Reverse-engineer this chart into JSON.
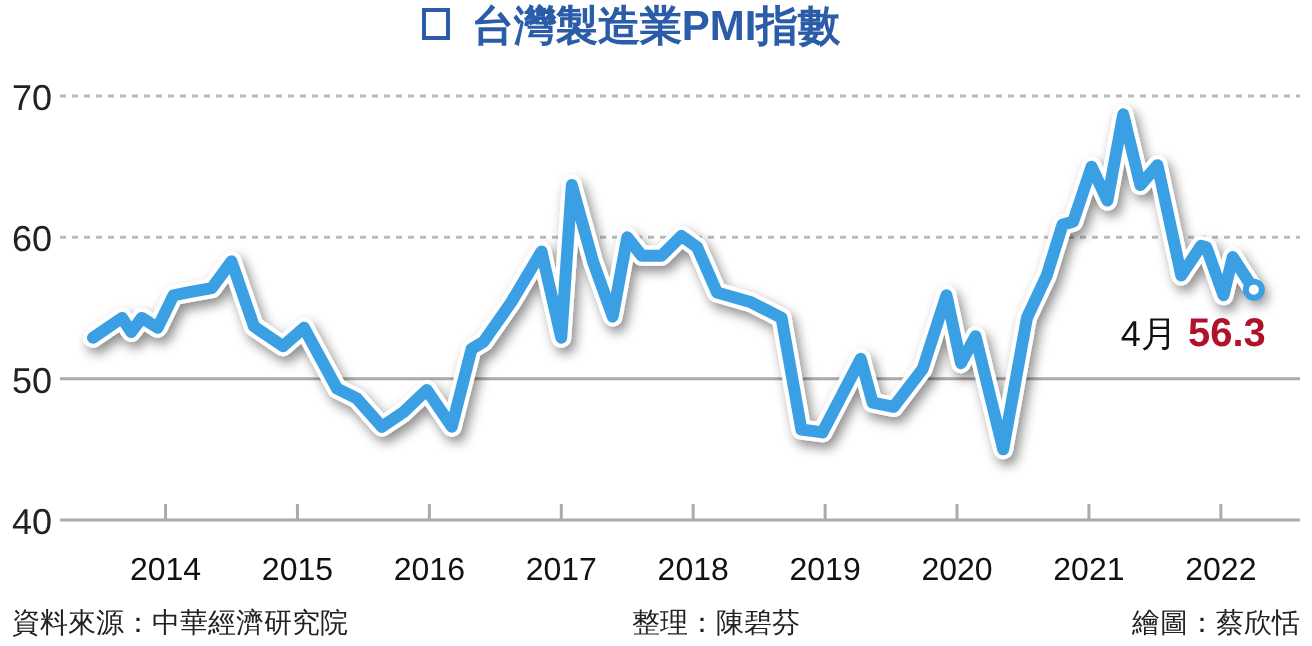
{
  "chart_data": {
    "type": "line",
    "title": "台灣製造業PMI指數",
    "x": [
      2013.45,
      2013.67,
      2013.74,
      2013.82,
      2013.94,
      2014.06,
      2014.17,
      2014.35,
      2014.5,
      2014.67,
      2014.89,
      2015.05,
      2015.3,
      2015.45,
      2015.64,
      2015.8,
      2015.98,
      2016.17,
      2016.32,
      2016.41,
      2016.62,
      2016.85,
      2017.0,
      2017.08,
      2017.24,
      2017.39,
      2017.5,
      2017.61,
      2017.76,
      2017.91,
      2018.03,
      2018.18,
      2018.44,
      2018.67,
      2018.82,
      2018.98,
      2019.27,
      2019.36,
      2019.52,
      2019.74,
      2019.92,
      2020.03,
      2020.14,
      2020.35,
      2020.53,
      2020.68,
      2020.8,
      2020.88,
      2021.02,
      2021.14,
      2021.26,
      2021.39,
      2021.52,
      2021.7,
      2021.85,
      2021.89,
      2022.02,
      2022.09,
      2022.25
    ],
    "series": [
      {
        "color": "#3ba0e3",
        "values": [
          52.9,
          54.3,
          53.3,
          54.3,
          53.6,
          55.9,
          56.1,
          56.4,
          58.3,
          53.7,
          52.3,
          53.6,
          49.3,
          48.6,
          46.6,
          47.6,
          49.2,
          46.6,
          52.1,
          52.6,
          55.4,
          59.0,
          52.9,
          63.7,
          58.3,
          54.4,
          60.0,
          58.7,
          58.7,
          60.1,
          59.3,
          56.1,
          55.4,
          54.3,
          46.4,
          46.2,
          51.4,
          48.3,
          48.0,
          50.7,
          55.9,
          51.1,
          53.0,
          45.0,
          54.3,
          57.3,
          60.9,
          61.1,
          65.0,
          62.6,
          68.7,
          63.7,
          65.1,
          57.3,
          59.4,
          59.3,
          55.9,
          58.6,
          56.3
        ]
      }
    ],
    "xlim": [
      2013.2,
      2022.6
    ],
    "xticks": [
      2014,
      2015,
      2016,
      2017,
      2018,
      2019,
      2020,
      2021,
      2022
    ],
    "ylim": [
      40,
      70
    ],
    "yticks": [
      40,
      50,
      60,
      70
    ],
    "ref_lines": [
      {
        "axis": "y",
        "value": 50,
        "color": "#aaaaaa"
      },
      {
        "axis": "y",
        "value": 60,
        "color": "#bbbbbb",
        "line_style": "dashed"
      },
      {
        "axis": "y",
        "value": 70,
        "color": "#bbbbbb",
        "line_style": "dashed"
      }
    ],
    "annotations": [
      {
        "text": "4月 56.3",
        "x": 2022.25,
        "y": 56.3
      },
      "資料來源：中華經濟研究院",
      "整理：陳碧芬",
      "繪圖：蔡欣恬"
    ]
  }
}
